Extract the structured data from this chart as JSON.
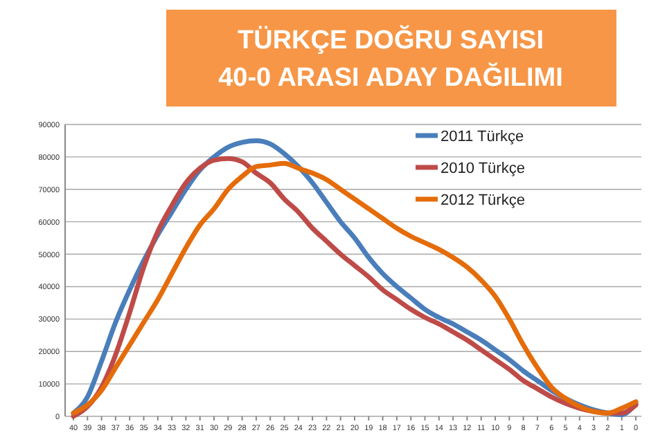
{
  "chart_data": {
    "type": "line",
    "title": "TÜRKÇE DOĞRU SAYISI\n40-0 ARASI ADAY DAĞILIMI",
    "categories": [
      "40",
      "39",
      "38",
      "37",
      "36",
      "35",
      "34",
      "33",
      "32",
      "31",
      "30",
      "29",
      "28",
      "27",
      "26",
      "25",
      "24",
      "23",
      "22",
      "21",
      "20",
      "19",
      "18",
      "17",
      "16",
      "15",
      "14",
      "13",
      "12",
      "11",
      "10",
      "9",
      "8",
      "7",
      "6",
      "5",
      "4",
      "3",
      "2",
      "1",
      "0"
    ],
    "series": [
      {
        "name": "2011 Türkçe",
        "color": "#4a7ebb",
        "values": [
          1000,
          6000,
          17000,
          29000,
          39000,
          48000,
          56000,
          63000,
          70000,
          76000,
          80000,
          83000,
          84500,
          85000,
          84000,
          81000,
          77000,
          72000,
          66000,
          60000,
          55000,
          49000,
          44000,
          40000,
          36500,
          33000,
          30500,
          28500,
          26000,
          23500,
          20500,
          17500,
          14000,
          11000,
          8000,
          5500,
          3500,
          2000,
          1000,
          500,
          4000
        ]
      },
      {
        "name": "2010 Türkçe",
        "color": "#be4b48",
        "values": [
          0,
          3000,
          9000,
          19000,
          32000,
          46000,
          57000,
          65000,
          72000,
          76500,
          79000,
          79500,
          78500,
          75000,
          72000,
          67000,
          63000,
          58000,
          54000,
          50000,
          46500,
          43000,
          39000,
          36000,
          33000,
          30500,
          28500,
          26000,
          23500,
          20500,
          17500,
          14500,
          11000,
          8500,
          6000,
          4000,
          2500,
          1500,
          1000,
          1000,
          3500
        ]
      },
      {
        "name": "2012 Türkçe",
        "color": "#e46c0a",
        "values": [
          1000,
          3500,
          8000,
          15000,
          22000,
          29000,
          36000,
          44000,
          52000,
          59000,
          64000,
          70000,
          74000,
          77000,
          77500,
          78000,
          76500,
          75000,
          73000,
          70000,
          67000,
          64000,
          61000,
          58000,
          55500,
          53500,
          51500,
          49000,
          46000,
          42000,
          37000,
          30000,
          22000,
          15000,
          9000,
          5500,
          3000,
          1500,
          1000,
          2500,
          4500
        ]
      }
    ],
    "ylim": [
      0,
      90000
    ],
    "yticks": [
      0,
      10000,
      20000,
      30000,
      40000,
      50000,
      60000,
      70000,
      80000,
      90000
    ],
    "grid": "y",
    "legend": "top right",
    "line_style": "solid"
  }
}
